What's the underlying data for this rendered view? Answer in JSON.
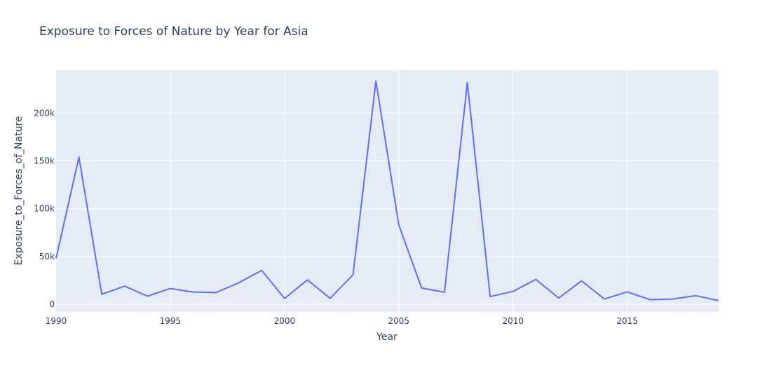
{
  "chart_data": {
    "type": "line",
    "title": "Exposure to Forces of Nature by Year for Asia",
    "xlabel": "Year",
    "ylabel": "Exposure_to_Forces_of_Nature",
    "xlim": [
      1990,
      2019
    ],
    "ylim": [
      -8000,
      245000
    ],
    "grid": true,
    "colors": {
      "line": "#636efa",
      "plot_bg": "#e5ecf6",
      "text": "#2a3f5f"
    },
    "x_ticks": [
      1990,
      1995,
      2000,
      2005,
      2010,
      2015
    ],
    "x_tick_labels": [
      "1990",
      "1995",
      "2000",
      "2005",
      "2010",
      "2015"
    ],
    "y_ticks": [
      0,
      50000,
      100000,
      150000,
      200000
    ],
    "y_tick_labels": [
      "0",
      "50k",
      "100k",
      "150k",
      "200k"
    ],
    "series": [
      {
        "name": "Asia",
        "x": [
          1990,
          1991,
          1992,
          1993,
          1994,
          1995,
          1996,
          1997,
          1998,
          1999,
          2000,
          2001,
          2002,
          2003,
          2004,
          2005,
          2006,
          2007,
          2008,
          2009,
          2010,
          2011,
          2012,
          2013,
          2014,
          2015,
          2016,
          2017,
          2018,
          2019
        ],
        "values": [
          48000,
          154000,
          10500,
          19000,
          8500,
          16500,
          12800,
          12300,
          22500,
          35500,
          6000,
          25500,
          6200,
          31000,
          233500,
          83000,
          17000,
          12500,
          232000,
          8000,
          13500,
          26000,
          6500,
          24500,
          5500,
          13000,
          4800,
          5500,
          9000,
          3800
        ]
      }
    ]
  }
}
